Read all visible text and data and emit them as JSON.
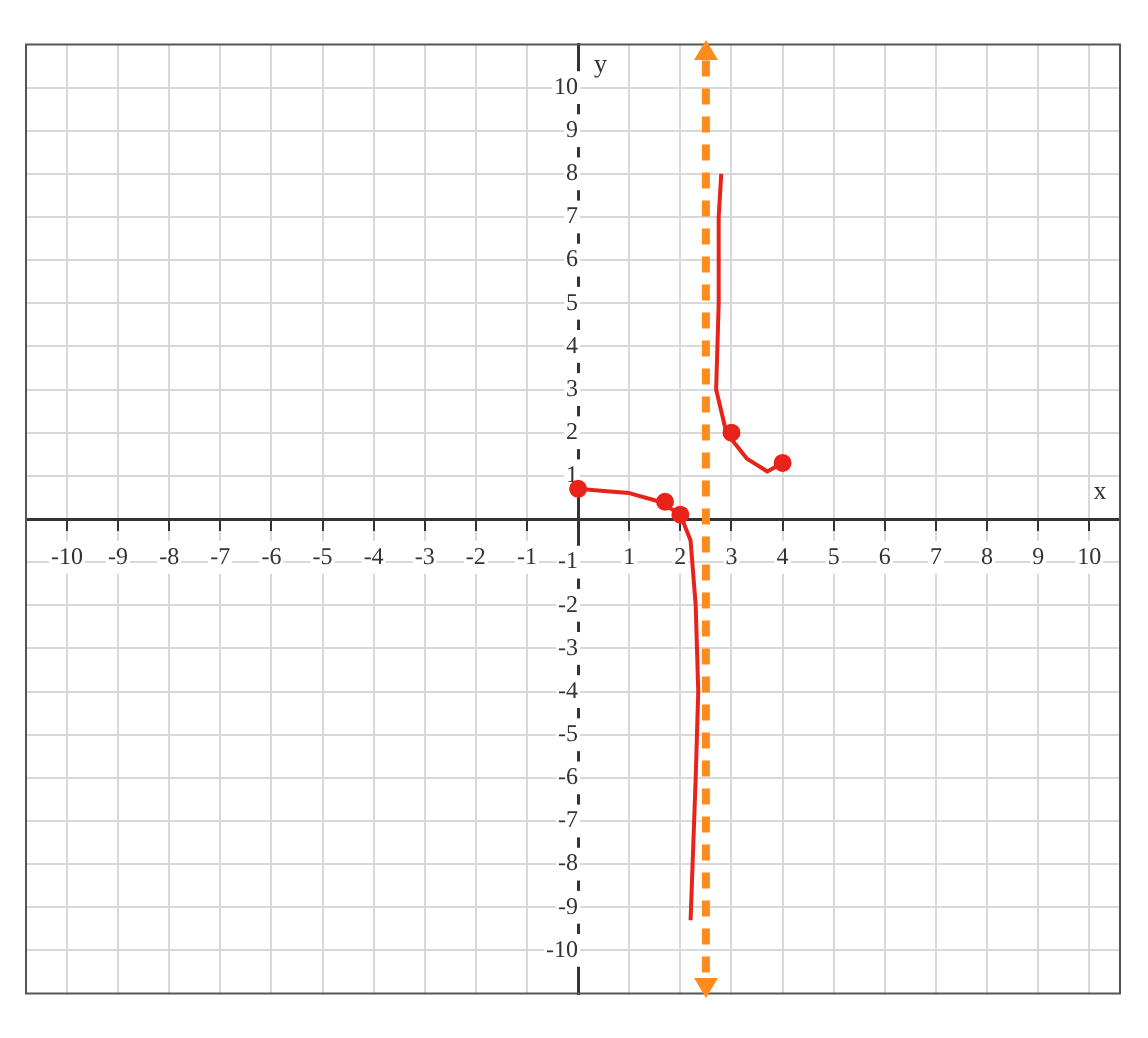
{
  "chart_data": {
    "type": "line",
    "xlabel": "x",
    "ylabel": "y",
    "xlim": [
      -10.8,
      10.6
    ],
    "ylim": [
      -11,
      11
    ],
    "xticks": [
      -10,
      -9,
      -8,
      -7,
      -6,
      -5,
      -4,
      -3,
      -2,
      -1,
      1,
      2,
      3,
      4,
      5,
      6,
      7,
      8,
      9,
      10
    ],
    "yticks": [
      -10,
      -9,
      -8,
      -7,
      -6,
      -5,
      -4,
      -3,
      -2,
      -1,
      1,
      2,
      3,
      4,
      5,
      6,
      7,
      8,
      9,
      10
    ],
    "grid": true,
    "legend": false,
    "marker": "none",
    "line_style": "solid",
    "series": [
      {
        "color": "#e8231a",
        "x": [
          0,
          0.5,
          1,
          1.6,
          2,
          2.2,
          2.3,
          2.35,
          2.3,
          2.2
        ],
        "values": [
          0.7,
          0.65,
          0.6,
          0.4,
          0.1,
          -0.5,
          -2,
          -4,
          -6,
          -9.3
        ]
      },
      {
        "color": "#e8231a",
        "x": [
          2.8,
          2.75,
          2.75,
          2.7,
          2.9,
          3.3,
          3.7,
          4
        ],
        "values": [
          8,
          7,
          5,
          3,
          2,
          1.4,
          1.1,
          1.3
        ]
      },
      {
        "type": "scatter",
        "marker": "circle",
        "color": "#e8231a",
        "x": [
          0,
          1.7,
          2,
          3,
          4
        ],
        "values": [
          0.7,
          0.4,
          0.1,
          2,
          1.3
        ]
      }
    ],
    "ref_lines": [
      {
        "axis": "x",
        "value": 2.5,
        "color": "#ff8c1a",
        "line_style": "dashed"
      }
    ]
  }
}
